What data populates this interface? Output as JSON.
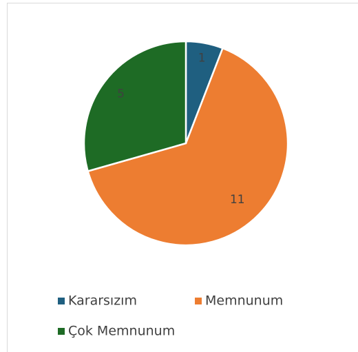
{
  "chart_data": {
    "type": "pie",
    "categories": [
      "Kararsızım",
      "Memnunum",
      "Çok Memnunum"
    ],
    "values": [
      1,
      11,
      5
    ],
    "colors": [
      "#1f5f80",
      "#ed7d31",
      "#1e6b25"
    ]
  }
}
